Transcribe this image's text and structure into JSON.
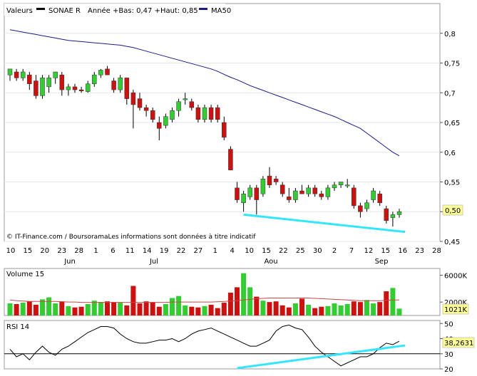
{
  "chart_data": [
    {
      "type": "candlestick",
      "legend": [
        {
          "label": "Valeurs"
        },
        {
          "label": "SONAE R",
          "color": "#000000"
        },
        {
          "label": "Année +Bas: 0,47 +Haut: 0,85"
        },
        {
          "label": "MA50",
          "color": "#1a1a8c"
        }
      ],
      "ylim": [
        0.45,
        0.85
      ],
      "yticks": [
        "0,8",
        "0,75",
        "0,7",
        "0,65",
        "0,6",
        "0,55",
        "0,5",
        "0,45"
      ],
      "last_value_label": "0,50",
      "footer_text": "© IT-Finance.com / BoursoramaLes informations sont données à titre indicatif",
      "colors": {
        "up": "#33cc33",
        "down": "#cc1111",
        "ma": "#1a1a8c",
        "trend": "#33e6ff",
        "highlight": "#ffff99"
      },
      "series": [
        {
          "name": "SONAE R",
          "candles": [
            {
              "o": 0.73,
              "h": 0.74,
              "l": 0.72,
              "c": 0.74
            },
            {
              "o": 0.735,
              "h": 0.74,
              "l": 0.72,
              "c": 0.725
            },
            {
              "o": 0.725,
              "h": 0.74,
              "l": 0.72,
              "c": 0.735
            },
            {
              "o": 0.73,
              "h": 0.735,
              "l": 0.705,
              "c": 0.715
            },
            {
              "o": 0.72,
              "h": 0.73,
              "l": 0.69,
              "c": 0.695
            },
            {
              "o": 0.695,
              "h": 0.73,
              "l": 0.69,
              "c": 0.725
            },
            {
              "o": 0.71,
              "h": 0.73,
              "l": 0.7,
              "c": 0.725
            },
            {
              "o": 0.725,
              "h": 0.735,
              "l": 0.715,
              "c": 0.735
            },
            {
              "o": 0.73,
              "h": 0.735,
              "l": 0.695,
              "c": 0.705
            },
            {
              "o": 0.705,
              "h": 0.715,
              "l": 0.695,
              "c": 0.71
            },
            {
              "o": 0.71,
              "h": 0.715,
              "l": 0.7,
              "c": 0.705
            },
            {
              "o": 0.705,
              "h": 0.71,
              "l": 0.7,
              "c": 0.703
            },
            {
              "o": 0.702,
              "h": 0.72,
              "l": 0.7,
              "c": 0.715
            },
            {
              "o": 0.715,
              "h": 0.735,
              "l": 0.71,
              "c": 0.73
            },
            {
              "o": 0.73,
              "h": 0.74,
              "l": 0.725,
              "c": 0.738
            },
            {
              "o": 0.74,
              "h": 0.745,
              "l": 0.73,
              "c": 0.73
            },
            {
              "o": 0.72,
              "h": 0.725,
              "l": 0.7,
              "c": 0.705
            },
            {
              "o": 0.705,
              "h": 0.73,
              "l": 0.7,
              "c": 0.725
            },
            {
              "o": 0.725,
              "h": 0.725,
              "l": 0.68,
              "c": 0.69
            },
            {
              "o": 0.7,
              "h": 0.705,
              "l": 0.64,
              "c": 0.68
            },
            {
              "o": 0.69,
              "h": 0.7,
              "l": 0.67,
              "c": 0.675
            },
            {
              "o": 0.675,
              "h": 0.68,
              "l": 0.66,
              "c": 0.67
            },
            {
              "o": 0.67,
              "h": 0.675,
              "l": 0.65,
              "c": 0.655
            },
            {
              "o": 0.65,
              "h": 0.66,
              "l": 0.62,
              "c": 0.64
            },
            {
              "o": 0.645,
              "h": 0.665,
              "l": 0.64,
              "c": 0.66
            },
            {
              "o": 0.655,
              "h": 0.675,
              "l": 0.65,
              "c": 0.67
            },
            {
              "o": 0.67,
              "h": 0.69,
              "l": 0.66,
              "c": 0.685
            },
            {
              "o": 0.69,
              "h": 0.7,
              "l": 0.68,
              "c": 0.69
            },
            {
              "o": 0.685,
              "h": 0.69,
              "l": 0.67,
              "c": 0.675
            },
            {
              "o": 0.675,
              "h": 0.68,
              "l": 0.65,
              "c": 0.655
            },
            {
              "o": 0.655,
              "h": 0.68,
              "l": 0.65,
              "c": 0.675
            },
            {
              "o": 0.675,
              "h": 0.68,
              "l": 0.65,
              "c": 0.655
            },
            {
              "o": 0.675,
              "h": 0.68,
              "l": 0.65,
              "c": 0.655
            },
            {
              "o": 0.65,
              "h": 0.66,
              "l": 0.62,
              "c": 0.625
            },
            {
              "o": 0.605,
              "h": 0.61,
              "l": 0.57,
              "c": 0.57
            },
            {
              "o": 0.54,
              "h": 0.55,
              "l": 0.515,
              "c": 0.52
            },
            {
              "o": 0.515,
              "h": 0.535,
              "l": 0.5,
              "c": 0.53
            },
            {
              "o": 0.525,
              "h": 0.545,
              "l": 0.52,
              "c": 0.54
            },
            {
              "o": 0.54,
              "h": 0.545,
              "l": 0.495,
              "c": 0.52
            },
            {
              "o": 0.53,
              "h": 0.56,
              "l": 0.525,
              "c": 0.555
            },
            {
              "o": 0.56,
              "h": 0.575,
              "l": 0.54,
              "c": 0.545
            },
            {
              "o": 0.555,
              "h": 0.56,
              "l": 0.545,
              "c": 0.55
            },
            {
              "o": 0.545,
              "h": 0.55,
              "l": 0.525,
              "c": 0.53
            },
            {
              "o": 0.525,
              "h": 0.54,
              "l": 0.515,
              "c": 0.52
            },
            {
              "o": 0.52,
              "h": 0.54,
              "l": 0.515,
              "c": 0.535
            },
            {
              "o": 0.535,
              "h": 0.545,
              "l": 0.53,
              "c": 0.53
            },
            {
              "o": 0.53,
              "h": 0.545,
              "l": 0.525,
              "c": 0.54
            },
            {
              "o": 0.54,
              "h": 0.545,
              "l": 0.525,
              "c": 0.53
            },
            {
              "o": 0.53,
              "h": 0.535,
              "l": 0.52,
              "c": 0.525
            },
            {
              "o": 0.525,
              "h": 0.545,
              "l": 0.52,
              "c": 0.54
            },
            {
              "o": 0.54,
              "h": 0.55,
              "l": 0.535,
              "c": 0.545
            },
            {
              "o": 0.545,
              "h": 0.55,
              "l": 0.54,
              "c": 0.55
            },
            {
              "o": 0.545,
              "h": 0.555,
              "l": 0.54,
              "c": 0.545
            },
            {
              "o": 0.54,
              "h": 0.545,
              "l": 0.505,
              "c": 0.51
            },
            {
              "o": 0.51,
              "h": 0.515,
              "l": 0.49,
              "c": 0.5
            },
            {
              "o": 0.505,
              "h": 0.52,
              "l": 0.5,
              "c": 0.515
            },
            {
              "o": 0.52,
              "h": 0.54,
              "l": 0.515,
              "c": 0.535
            },
            {
              "o": 0.53,
              "h": 0.535,
              "l": 0.51,
              "c": 0.515
            },
            {
              "o": 0.505,
              "h": 0.51,
              "l": 0.48,
              "c": 0.485
            },
            {
              "o": 0.49,
              "h": 0.5,
              "l": 0.475,
              "c": 0.495
            },
            {
              "o": 0.495,
              "h": 0.505,
              "l": 0.49,
              "c": 0.5
            }
          ]
        },
        {
          "name": "MA50",
          "values": [
            0.806,
            0.804,
            0.802,
            0.8,
            0.798,
            0.796,
            0.794,
            0.792,
            0.79,
            0.788,
            0.787,
            0.786,
            0.785,
            0.784,
            0.783,
            0.782,
            0.781,
            0.78,
            0.778,
            0.776,
            0.773,
            0.77,
            0.767,
            0.764,
            0.761,
            0.758,
            0.755,
            0.752,
            0.749,
            0.746,
            0.743,
            0.74,
            0.736,
            0.731,
            0.726,
            0.722,
            0.717,
            0.712,
            0.708,
            0.704,
            0.7,
            0.696,
            0.692,
            0.688,
            0.684,
            0.68,
            0.676,
            0.672,
            0.668,
            0.664,
            0.66,
            0.655,
            0.65,
            0.645,
            0.64,
            0.632,
            0.624,
            0.616,
            0.608,
            0.6,
            0.594
          ]
        }
      ]
    },
    {
      "type": "bar",
      "legend": [
        {
          "label": "Volume 15"
        }
      ],
      "ylim": [
        0,
        7000
      ],
      "yticks": [
        "6000K",
        "2000K"
      ],
      "last_value_label": "1021K",
      "series": [
        {
          "name": "Volume 15",
          "values": [
            1800,
            1700,
            1900,
            2100,
            1600,
            2400,
            2700,
            1800,
            2100,
            1400,
            1200,
            1300,
            1700,
            2200,
            2000,
            2100,
            2000,
            1900,
            1500,
            4400,
            1800,
            2100,
            2000,
            1300,
            1700,
            2600,
            2900,
            1500,
            1300,
            1200,
            1400,
            1600,
            1100,
            1900,
            3400,
            4200,
            6300,
            4200,
            2800,
            2200,
            2000,
            2100,
            1500,
            1200,
            1800,
            2500,
            1600,
            1100,
            1300,
            1400,
            1800,
            1500,
            1700,
            2100,
            2000,
            2300,
            1800,
            2000,
            3600,
            4100,
            1021
          ]
        },
        {
          "name": "MA",
          "values": [
            2300,
            2200,
            2150,
            2100,
            2100,
            2100,
            2100,
            2100,
            2050,
            2000,
            2000,
            1950,
            1950,
            1950,
            1950,
            1950,
            1950,
            1950,
            1950,
            1950,
            1950,
            1950,
            1950,
            1950,
            1950,
            2000,
            2000,
            2000,
            2000,
            2000,
            2000,
            2000,
            2050,
            2100,
            2150,
            2200,
            2300,
            2400,
            2500,
            2550,
            2600,
            2600,
            2600,
            2600,
            2600,
            2600,
            2600,
            2550,
            2500,
            2450,
            2400,
            2350,
            2300,
            2250,
            2200,
            2200,
            2200,
            2200,
            2250,
            2300,
            2300
          ]
        }
      ]
    },
    {
      "type": "line",
      "legend": [
        {
          "label": "RSI 14"
        }
      ],
      "ylim": [
        20,
        52
      ],
      "yticks": [
        "50",
        "40",
        "30",
        "20"
      ],
      "last_value_label": "38,2631",
      "reference_line": 30,
      "series": [
        {
          "name": "RSI 14",
          "values": [
            33,
            28,
            30,
            26,
            31,
            35,
            31,
            29,
            33,
            35,
            38,
            41,
            44,
            46,
            48,
            48,
            47,
            43,
            40,
            38,
            37,
            37,
            38,
            39,
            39,
            40,
            38,
            40,
            43,
            45,
            46,
            47,
            45,
            43,
            41,
            39,
            37,
            35,
            35,
            37,
            39,
            45,
            48,
            49,
            47,
            46,
            41,
            35,
            31,
            28,
            25,
            22,
            24,
            26,
            28,
            28,
            30,
            34,
            37,
            36,
            38.2631
          ]
        },
        {
          "name": "RSI trend",
          "values": []
        }
      ]
    }
  ],
  "x_axis": {
    "ticks": [
      "10",
      "15",
      "20",
      "23",
      "28",
      "1",
      "6",
      "11",
      "14",
      "19",
      "22",
      "27",
      "1",
      "4",
      "10",
      "15",
      "22",
      "25",
      "30",
      "2",
      "7",
      "12",
      "15",
      "16",
      "23",
      "28"
    ],
    "months": [
      "Jun",
      "Jul",
      "Aou",
      "Sep"
    ]
  }
}
